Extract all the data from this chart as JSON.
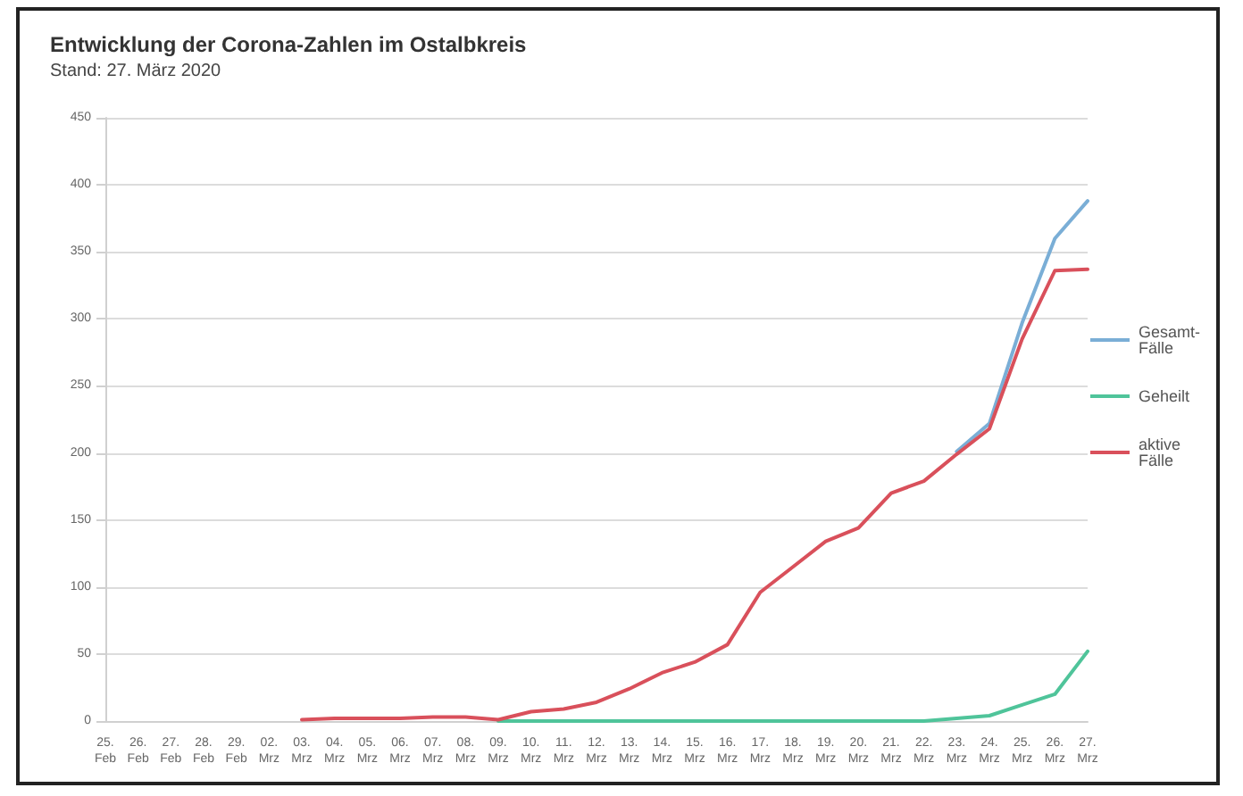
{
  "chart_data": {
    "type": "line",
    "title": "Entwicklung der Corona-Zahlen im Ostalbkreis",
    "subtitle": "Stand: 27. März 2020",
    "categories": [
      "25. Feb",
      "26. Feb",
      "27. Feb",
      "28. Feb",
      "29. Feb",
      "02. Mrz",
      "03. Mrz",
      "04. Mrz",
      "05. Mrz",
      "06. Mrz",
      "07. Mrz",
      "08. Mrz",
      "09. Mrz",
      "10. Mrz",
      "11. Mrz",
      "12. Mrz",
      "13. Mrz",
      "14. Mrz",
      "15. Mrz",
      "16. Mrz",
      "17. Mrz",
      "18. Mrz",
      "19. Mrz",
      "20. Mrz",
      "21. Mrz",
      "22. Mrz",
      "23. Mrz",
      "24. Mrz",
      "25. Mrz",
      "26. Mrz",
      "27. Mrz"
    ],
    "series": [
      {
        "name": "Gesamt-Fälle",
        "color": "#7aaed6",
        "values": [
          null,
          null,
          null,
          null,
          null,
          null,
          null,
          null,
          null,
          null,
          null,
          null,
          null,
          null,
          null,
          null,
          null,
          null,
          null,
          null,
          null,
          null,
          null,
          null,
          null,
          null,
          201,
          222,
          297,
          360,
          388
        ]
      },
      {
        "name": "Geheilt",
        "color": "#4fc49a",
        "values": [
          null,
          null,
          null,
          null,
          null,
          null,
          null,
          null,
          null,
          null,
          null,
          null,
          0,
          0,
          0,
          0,
          0,
          0,
          0,
          0,
          0,
          0,
          0,
          0,
          0,
          0,
          2,
          4,
          12,
          20,
          52
        ]
      },
      {
        "name": "aktive Fälle",
        "color": "#d9505b",
        "values": [
          null,
          null,
          null,
          null,
          null,
          null,
          1,
          2,
          2,
          2,
          3,
          3,
          1,
          7,
          9,
          14,
          24,
          36,
          44,
          57,
          96,
          115,
          134,
          144,
          170,
          179,
          199,
          218,
          285,
          336,
          337
        ]
      }
    ],
    "ylim": [
      0,
      450
    ],
    "yticks": [
      0,
      50,
      100,
      150,
      200,
      250,
      300,
      350,
      400,
      450
    ],
    "grid": "y",
    "legend": "right",
    "marker": "none",
    "line_style": "solid"
  }
}
